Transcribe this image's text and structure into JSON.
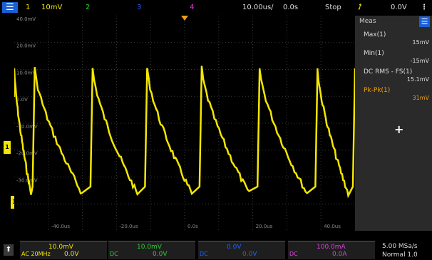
{
  "top_bar": {
    "menu_icon": "menu-icon",
    "ch1_num": "1",
    "ch1_scale": "10mV",
    "ch2_num": "2",
    "ch3_num": "3",
    "ch4_num": "4",
    "timebase": "10.00us/",
    "delay": "0.0s",
    "run_state": "Stop",
    "trigger_icon": "trigger-edge-icon",
    "trigger_level": "0.0V"
  },
  "grid": {
    "y_labels": [
      "40.0mV",
      "20.0mV",
      "10.0mV",
      "0.0V",
      "-10.0mV",
      "-20.0mV",
      "-30.0mV"
    ],
    "x_labels": [
      "-40.0us",
      "-20.0us",
      "0.0s",
      "20.0us",
      "40.0us"
    ]
  },
  "waveform": {
    "channel": "1",
    "color": "#f3e700",
    "peaks": [
      0.06,
      0.23,
      0.39,
      0.55,
      0.72,
      0.89,
      1.0
    ]
  },
  "side_panel": {
    "title": "Meas",
    "menu_icon": "menu-icon",
    "measurements": [
      {
        "label": "Max(1)",
        "value": "15mV",
        "color": "#dddddd"
      },
      {
        "label": "Min(1)",
        "value": "-15mV",
        "color": "#dddddd"
      },
      {
        "label": "DC RMS - FS(1)",
        "value": "15.1mV",
        "color": "#dddddd"
      },
      {
        "label": "Pk-Pk(1)",
        "value": "31mV",
        "color": "#f3a200"
      }
    ],
    "add_icon": "plus-icon"
  },
  "bottom_bar": {
    "home_icon": "up-arrow-icon",
    "channels": [
      {
        "scale": "10.0mV",
        "offset": "0.0V",
        "misc": "AC 20MHz",
        "color": "#f3e700"
      },
      {
        "scale": "10.0mV",
        "offset": "0.0V",
        "misc": "DC",
        "color": "#35c838"
      },
      {
        "scale": "0.0V",
        "offset": "0.0V",
        "misc": "DC",
        "color": "#1e62ff"
      },
      {
        "scale": "100.0mA",
        "offset": "0.0A",
        "misc": "DC",
        "color": "#e13de0"
      }
    ],
    "acq_rate": "5.00 MSa/s",
    "acq_mode": "Normal 1.0"
  }
}
